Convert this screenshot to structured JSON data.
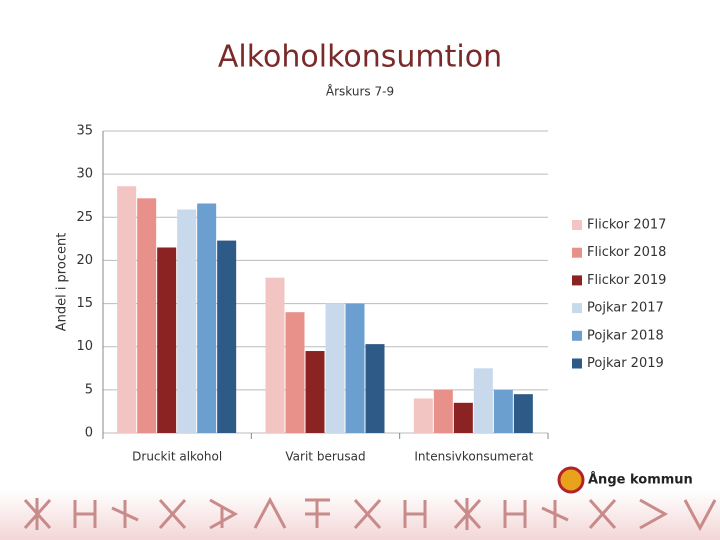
{
  "chart_data": {
    "type": "bar",
    "title": "Alkoholkonsumtion",
    "subtitle": "Årskurs 7-9",
    "y_label": "Andel i procent",
    "categories": [
      "Druckit alkohol",
      "Varit berusad",
      "Intensivkonsumerat"
    ],
    "series": [
      {
        "name": "Flickor 2017",
        "color": "#f2c4c2",
        "values": [
          28.6,
          18.0,
          4.0
        ]
      },
      {
        "name": "Flickor 2018",
        "color": "#e8908a",
        "values": [
          27.2,
          14.0,
          5.0
        ]
      },
      {
        "name": "Flickor 2019",
        "color": "#8b2322",
        "values": [
          21.5,
          9.5,
          3.5
        ]
      },
      {
        "name": "Pojkar 2017",
        "color": "#c9d9ec",
        "values": [
          25.9,
          15.0,
          7.5
        ]
      },
      {
        "name": "Pojkar 2018",
        "color": "#6b9fd0",
        "values": [
          26.6,
          15.0,
          5.0
        ]
      },
      {
        "name": "Pojkar 2019",
        "color": "#2e5a88",
        "values": [
          22.3,
          10.3,
          4.5
        ]
      }
    ],
    "ylim": [
      0,
      35
    ],
    "yticks": [
      0,
      5,
      10,
      15,
      20,
      25,
      30,
      35
    ],
    "grid": true,
    "legend": "right"
  },
  "logo_text": "Ånge kommun"
}
